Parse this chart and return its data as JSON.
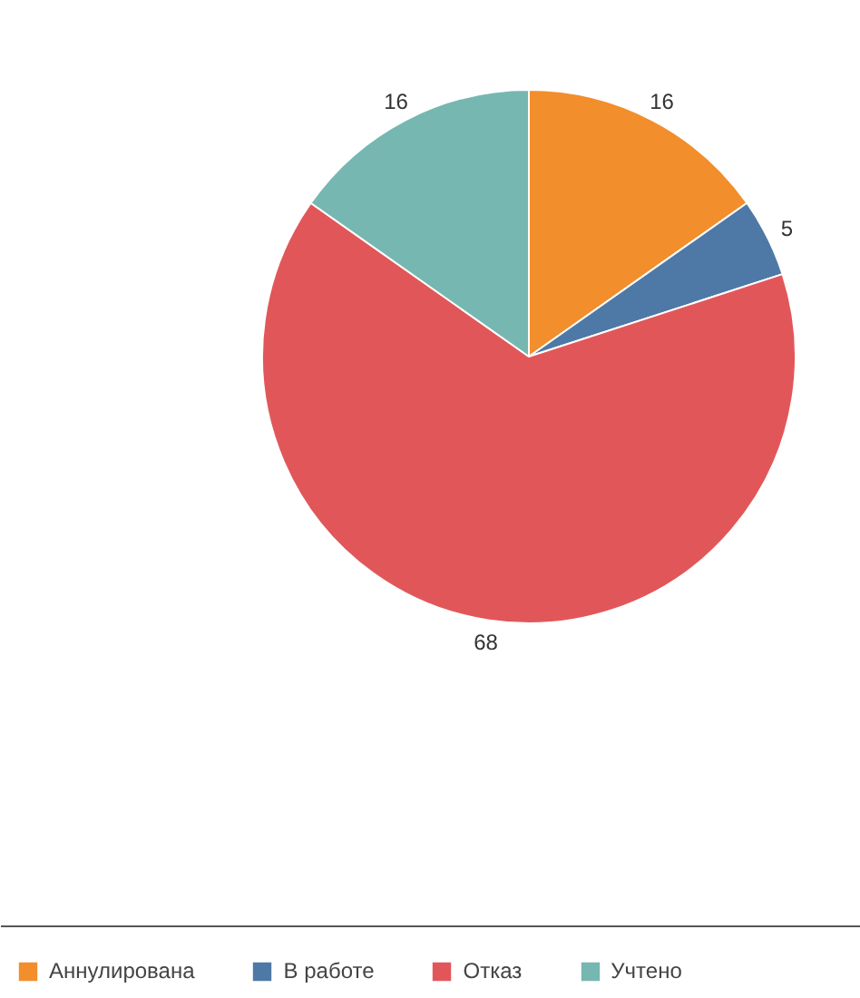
{
  "chart_data": {
    "type": "pie",
    "categories": [
      "Аннулирована",
      "В работе",
      "Отказ",
      "Учтено"
    ],
    "values": [
      16,
      5,
      68,
      16
    ],
    "colors": [
      "#f28e2b",
      "#4e79a7",
      "#e15759",
      "#76b7b2"
    ],
    "data_labels": true,
    "legend": "bottom"
  }
}
